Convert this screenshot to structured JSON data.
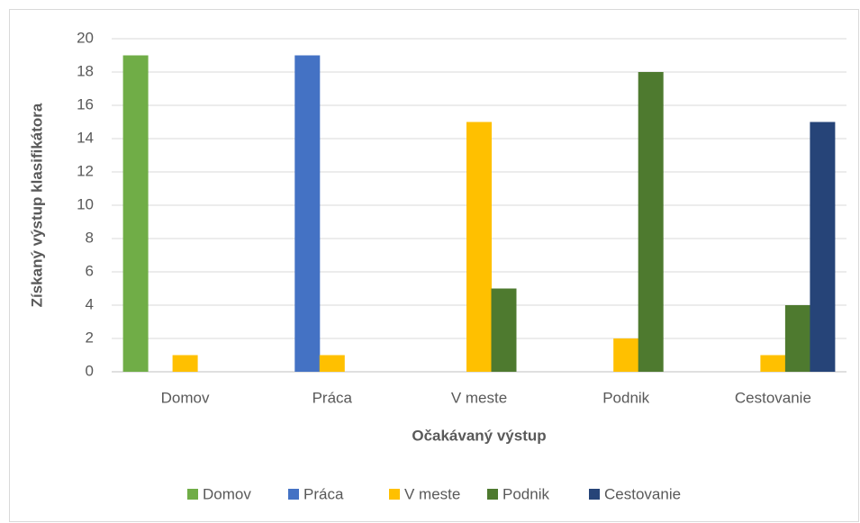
{
  "chart_data": {
    "type": "bar",
    "y_label": "Získaný výstup klasifikátora",
    "x_label": "Očakávaný výstup",
    "categories": [
      "Domov",
      "Práca",
      "V meste",
      "Podnik",
      "Cestovanie"
    ],
    "series": [
      {
        "name": "Domov",
        "color": "#70ad47",
        "values": [
          19,
          0,
          0,
          0,
          0
        ]
      },
      {
        "name": "Práca",
        "color": "#4472c4",
        "values": [
          0,
          19,
          0,
          0,
          0
        ]
      },
      {
        "name": "V meste",
        "color": "#ffc000",
        "values": [
          1,
          1,
          15,
          2,
          1
        ]
      },
      {
        "name": "Podnik",
        "color": "#4e7a2f",
        "values": [
          0,
          0,
          5,
          18,
          4
        ]
      },
      {
        "name": "Cestovanie",
        "color": "#264478",
        "values": [
          0,
          0,
          0,
          0,
          15
        ]
      }
    ],
    "ylim": [
      0,
      20
    ],
    "yticks": [
      0,
      2,
      4,
      6,
      8,
      10,
      12,
      14,
      16,
      18,
      20
    ],
    "grid": true,
    "legend": "bottom"
  }
}
